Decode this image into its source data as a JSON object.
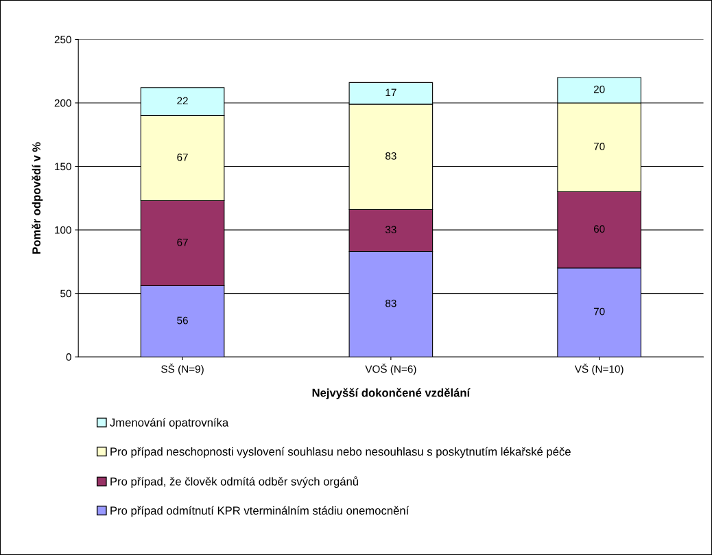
{
  "chart_data": {
    "type": "bar",
    "stacked": true,
    "xlabel": "Nejvyšší dokončené vzdělání",
    "ylabel": "Poměr odpovědí v %",
    "categories": [
      "SŠ (N=9)",
      "VOŠ (N=6)",
      "VŠ (N=10)"
    ],
    "series": [
      {
        "name": "Pro případ odmítnutí KPR vterminálním stádiu onemocnění",
        "color": "#9999ff",
        "values": [
          56,
          83,
          70
        ]
      },
      {
        "name": "Pro případ, že člověk odmítá odběr svých orgánů",
        "color": "#993366",
        "values": [
          67,
          33,
          60
        ]
      },
      {
        "name": "Pro případ neschopnosti vyslovení souhlasu nebo nesouhlasu s poskytnutím lékařské péče",
        "color": "#ffffcc",
        "values": [
          67,
          83,
          70
        ]
      },
      {
        "name": "Jmenování opatrovníka",
        "color": "#ccffff",
        "values": [
          22,
          17,
          20
        ]
      }
    ],
    "ylim": [
      0,
      250
    ],
    "yticks": [
      0,
      50,
      100,
      150,
      200,
      250
    ],
    "grid": "y",
    "legend": "bottom",
    "data_labels": true
  }
}
